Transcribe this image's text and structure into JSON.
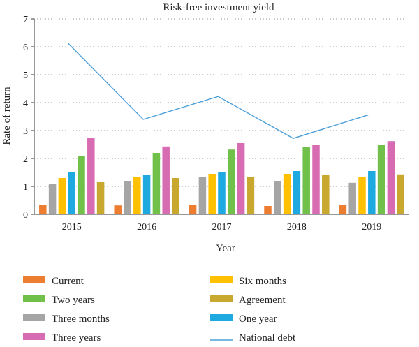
{
  "chart_data": {
    "type": "bar",
    "title": "Risk-free investment yield",
    "xlabel": "Year",
    "ylabel": "Rate of return",
    "ylim": [
      0,
      7
    ],
    "yticks": [
      0,
      1,
      2,
      3,
      4,
      5,
      6,
      7
    ],
    "grid": "horizontal dotted",
    "legend_position": "bottom",
    "categories": [
      "2015",
      "2016",
      "2017",
      "2018",
      "2019"
    ],
    "series": [
      {
        "name": "Current",
        "kind": "bar",
        "color": "#ED7D31",
        "values": [
          0.35,
          0.32,
          0.35,
          0.3,
          0.35
        ]
      },
      {
        "name": "Three months",
        "kind": "bar",
        "color": "#A5A5A5",
        "values": [
          1.1,
          1.2,
          1.33,
          1.2,
          1.13
        ]
      },
      {
        "name": "Six months",
        "kind": "bar",
        "color": "#FFC000",
        "values": [
          1.3,
          1.35,
          1.45,
          1.45,
          1.35
        ]
      },
      {
        "name": "One year",
        "kind": "bar",
        "color": "#1FA9E1",
        "values": [
          1.5,
          1.4,
          1.52,
          1.55,
          1.55
        ]
      },
      {
        "name": "Two years",
        "kind": "bar",
        "color": "#70C04A",
        "values": [
          2.1,
          2.2,
          2.32,
          2.4,
          2.5
        ]
      },
      {
        "name": "Three years",
        "kind": "bar",
        "color": "#D86CB2",
        "values": [
          2.75,
          2.43,
          2.55,
          2.5,
          2.62
        ]
      },
      {
        "name": "Agreement",
        "kind": "bar",
        "color": "#C8A82E",
        "values": [
          1.15,
          1.3,
          1.35,
          1.4,
          1.43
        ]
      },
      {
        "name": "National debt",
        "kind": "line",
        "color": "#4A9FD8",
        "values": [
          6.12,
          3.4,
          4.22,
          2.72,
          3.56
        ]
      }
    ],
    "legend_columns": [
      [
        "Current",
        "Two years",
        "Three months",
        "Three years"
      ],
      [
        "Six months",
        "Agreement",
        "One year",
        "National debt"
      ]
    ]
  }
}
